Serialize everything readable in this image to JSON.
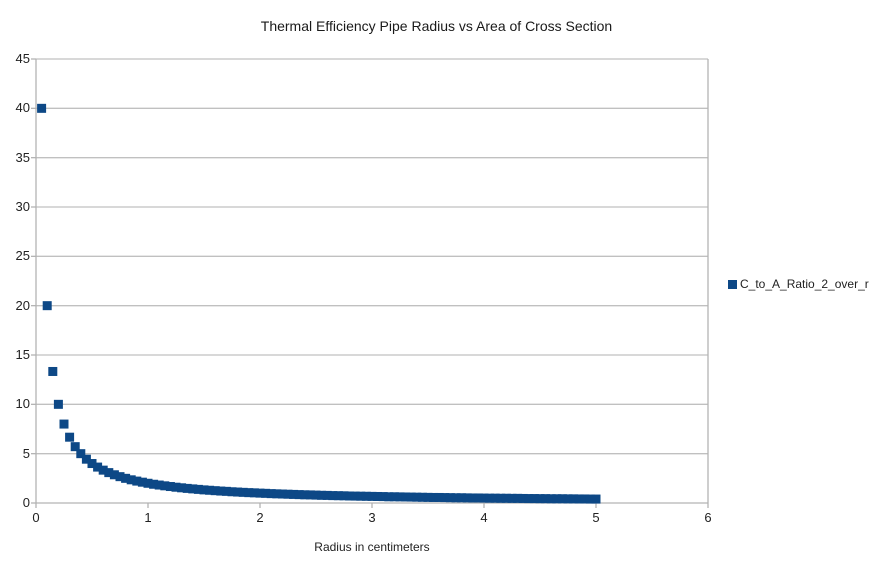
{
  "colors": {
    "background": "#ffffff",
    "axis_line": "#b3b3b3",
    "gridline": "#c0c0c0",
    "text": "#222222",
    "series": "#0d4886"
  },
  "chart_data": {
    "type": "scatter",
    "title": "Thermal Efficiency Pipe Radius vs Area of Cross Section",
    "xlabel": "Radius in centimeters",
    "ylabel": "",
    "xlim": [
      0,
      6
    ],
    "ylim": [
      0,
      45
    ],
    "x_ticks": [
      0,
      1,
      2,
      3,
      4,
      5,
      6
    ],
    "y_ticks": [
      0,
      5,
      10,
      15,
      20,
      25,
      30,
      35,
      40,
      45
    ],
    "grid": "horizontal-major",
    "legend_position": "right",
    "marker": "square",
    "series": [
      {
        "name": "C_to_A_Ratio_2_over_r",
        "color": "#0d4886",
        "x": [
          0.05,
          0.1,
          0.15,
          0.2,
          0.25,
          0.3,
          0.35,
          0.4,
          0.45,
          0.5,
          0.55,
          0.6,
          0.65,
          0.7,
          0.75,
          0.8,
          0.85,
          0.9,
          0.95,
          1,
          1.05,
          1.1,
          1.15,
          1.2,
          1.25,
          1.3,
          1.35,
          1.4,
          1.45,
          1.5,
          1.55,
          1.6,
          1.65,
          1.7,
          1.75,
          1.8,
          1.85,
          1.9,
          1.95,
          2,
          2.05,
          2.1,
          2.15,
          2.2,
          2.25,
          2.3,
          2.35,
          2.4,
          2.45,
          2.5,
          2.55,
          2.6,
          2.65,
          2.7,
          2.75,
          2.8,
          2.85,
          2.9,
          2.95,
          3,
          3.05,
          3.1,
          3.15,
          3.2,
          3.25,
          3.3,
          3.35,
          3.4,
          3.45,
          3.5,
          3.55,
          3.6,
          3.65,
          3.7,
          3.75,
          3.8,
          3.85,
          3.9,
          3.95,
          4,
          4.05,
          4.1,
          4.15,
          4.2,
          4.25,
          4.3,
          4.35,
          4.4,
          4.45,
          4.5,
          4.55,
          4.6,
          4.65,
          4.7,
          4.75,
          4.8,
          4.85,
          4.9,
          4.95,
          5
        ],
        "y": [
          40,
          20,
          13.33,
          10,
          8,
          6.67,
          5.71,
          5,
          4.44,
          4,
          3.64,
          3.33,
          3.08,
          2.86,
          2.67,
          2.5,
          2.35,
          2.22,
          2.11,
          2,
          1.9,
          1.82,
          1.74,
          1.67,
          1.6,
          1.54,
          1.48,
          1.43,
          1.38,
          1.33,
          1.29,
          1.25,
          1.21,
          1.18,
          1.14,
          1.11,
          1.08,
          1.05,
          1.03,
          1,
          0.98,
          0.95,
          0.93,
          0.91,
          0.89,
          0.87,
          0.85,
          0.83,
          0.82,
          0.8,
          0.78,
          0.77,
          0.75,
          0.74,
          0.73,
          0.71,
          0.7,
          0.69,
          0.68,
          0.67,
          0.66,
          0.65,
          0.63,
          0.63,
          0.62,
          0.61,
          0.6,
          0.59,
          0.58,
          0.57,
          0.56,
          0.56,
          0.55,
          0.54,
          0.53,
          0.53,
          0.52,
          0.51,
          0.51,
          0.5,
          0.49,
          0.49,
          0.48,
          0.48,
          0.47,
          0.47,
          0.46,
          0.45,
          0.45,
          0.44,
          0.44,
          0.43,
          0.43,
          0.43,
          0.42,
          0.42,
          0.41,
          0.41,
          0.4,
          0.4
        ]
      }
    ]
  }
}
